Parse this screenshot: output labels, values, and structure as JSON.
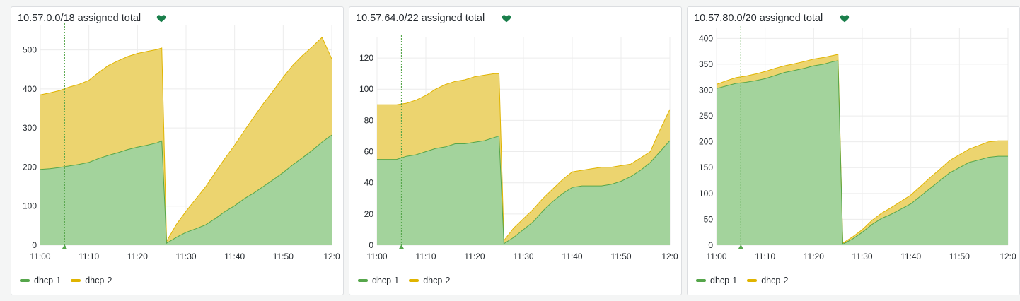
{
  "colors": {
    "dhcp1_fill": "#a3d39c",
    "dhcp1_line": "#56a64b",
    "dhcp2_fill": "#ecd46f",
    "dhcp2_line": "#e0b400",
    "grid": "#ececec",
    "annotation": "#56a64b",
    "heart": "#1a7f4b"
  },
  "legend": [
    {
      "label": "dhcp-1",
      "color": "#56a64b"
    },
    {
      "label": "dhcp-2",
      "color": "#e0b400"
    }
  ],
  "panels": [
    {
      "title": "10.57.0.0/18 assigned total",
      "chart_data": {
        "type": "area",
        "stacked": true,
        "xlim": [
          "11:00",
          "12:00"
        ],
        "x_ticks": [
          "11:00",
          "11:10",
          "11:20",
          "11:30",
          "11:40",
          "11:50",
          "12:0"
        ],
        "ylim": [
          0,
          550
        ],
        "y_ticks": [
          "0",
          "100",
          "200",
          "300",
          "400",
          "500"
        ],
        "annotation_time": "11:05",
        "grid": true,
        "legend_position": "bottom-left",
        "x": [
          "11:00",
          "11:02",
          "11:04",
          "11:06",
          "11:08",
          "11:10",
          "11:12",
          "11:14",
          "11:16",
          "11:18",
          "11:20",
          "11:22",
          "11:24",
          "11:25",
          "11:26",
          "11:28",
          "11:30",
          "11:32",
          "11:34",
          "11:36",
          "11:38",
          "11:40",
          "11:42",
          "11:44",
          "11:46",
          "11:48",
          "11:50",
          "11:52",
          "11:54",
          "11:56",
          "11:58",
          "12:00"
        ],
        "series": [
          {
            "name": "dhcp-1",
            "values": [
              194,
              196,
              199,
              203,
              207,
              212,
              222,
              230,
              237,
              245,
              251,
              256,
              262,
              267,
              5,
              20,
              33,
              42,
              52,
              68,
              86,
              101,
              119,
              134,
              151,
              168,
              186,
              206,
              224,
              243,
              264,
              282
            ]
          },
          {
            "name": "dhcp-2",
            "values": [
              191,
              194,
              197,
              202,
              205,
              210,
              220,
              230,
              235,
              238,
              240,
              240,
              239,
              238,
              5,
              33,
              54,
              76,
              97,
              118,
              136,
              155,
              174,
              195,
              213,
              228,
              244,
              255,
              262,
              265,
              268,
              195
            ]
          }
        ]
      }
    },
    {
      "title": "10.57.64.0/22 assigned total",
      "chart_data": {
        "type": "area",
        "stacked": true,
        "xlim": [
          "11:00",
          "12:00"
        ],
        "x_ticks": [
          "11:00",
          "11:10",
          "11:20",
          "11:30",
          "11:40",
          "11:50",
          "12:0"
        ],
        "ylim": [
          0,
          130
        ],
        "y_ticks": [
          "0",
          "20",
          "40",
          "60",
          "80",
          "100",
          "120"
        ],
        "annotation_time": "11:05",
        "grid": true,
        "legend_position": "bottom-left",
        "x": [
          "11:00",
          "11:02",
          "11:04",
          "11:06",
          "11:08",
          "11:10",
          "11:12",
          "11:14",
          "11:16",
          "11:18",
          "11:20",
          "11:22",
          "11:24",
          "11:25",
          "11:26",
          "11:28",
          "11:30",
          "11:32",
          "11:34",
          "11:36",
          "11:38",
          "11:40",
          "11:42",
          "11:44",
          "11:46",
          "11:48",
          "11:50",
          "11:52",
          "11:54",
          "11:56",
          "11:58",
          "12:00"
        ],
        "series": [
          {
            "name": "dhcp-1",
            "values": [
              55,
              55,
              55,
              57,
              58,
              60,
              62,
              63,
              65,
              65,
              66,
              67,
              69,
              70,
              1,
              5,
              10,
              15,
              22,
              28,
              33,
              37,
              38,
              38,
              38,
              39,
              41,
              44,
              48,
              53,
              60,
              67
            ]
          },
          {
            "name": "dhcp-2",
            "values": [
              35,
              35,
              35,
              34,
              35,
              36,
              38,
              40,
              40,
              41,
              42,
              42,
              41,
              40,
              2,
              6,
              7,
              8,
              8,
              8,
              9,
              10,
              10,
              11,
              12,
              11,
              10,
              8,
              8,
              7,
              14,
              20
            ]
          }
        ]
      }
    },
    {
      "title": "10.57.80.0/20 assigned total",
      "chart_data": {
        "type": "area",
        "stacked": true,
        "xlim": [
          "11:00",
          "12:00"
        ],
        "x_ticks": [
          "11:00",
          "11:10",
          "11:20",
          "11:30",
          "11:40",
          "11:50",
          "12:0"
        ],
        "ylim": [
          0,
          410
        ],
        "y_ticks": [
          "0",
          "50",
          "100",
          "150",
          "200",
          "250",
          "300",
          "350",
          "400"
        ],
        "annotation_time": "11:05",
        "grid": true,
        "legend_position": "bottom-left",
        "x": [
          "11:00",
          "11:02",
          "11:04",
          "11:06",
          "11:08",
          "11:10",
          "11:12",
          "11:14",
          "11:16",
          "11:18",
          "11:20",
          "11:22",
          "11:24",
          "11:25",
          "11:26",
          "11:28",
          "11:30",
          "11:32",
          "11:34",
          "11:36",
          "11:38",
          "11:40",
          "11:42",
          "11:44",
          "11:46",
          "11:48",
          "11:50",
          "11:52",
          "11:54",
          "11:56",
          "11:58",
          "12:00"
        ],
        "series": [
          {
            "name": "dhcp-1",
            "values": [
              303,
              308,
              313,
              315,
              318,
              322,
              328,
              334,
              338,
              342,
              347,
              350,
              355,
              357,
              2,
              12,
              25,
              40,
              52,
              60,
              70,
              80,
              95,
              110,
              125,
              140,
              150,
              160,
              165,
              170,
              172,
              172
            ]
          },
          {
            "name": "dhcp-2",
            "values": [
              8,
              10,
              11,
              12,
              13,
              14,
              14,
              13,
              13,
              13,
              13,
              13,
              12,
              12,
              2,
              4,
              5,
              8,
              10,
              13,
              15,
              17,
              19,
              21,
              22,
              24,
              25,
              26,
              28,
              30,
              30,
              30
            ]
          }
        ]
      }
    }
  ]
}
